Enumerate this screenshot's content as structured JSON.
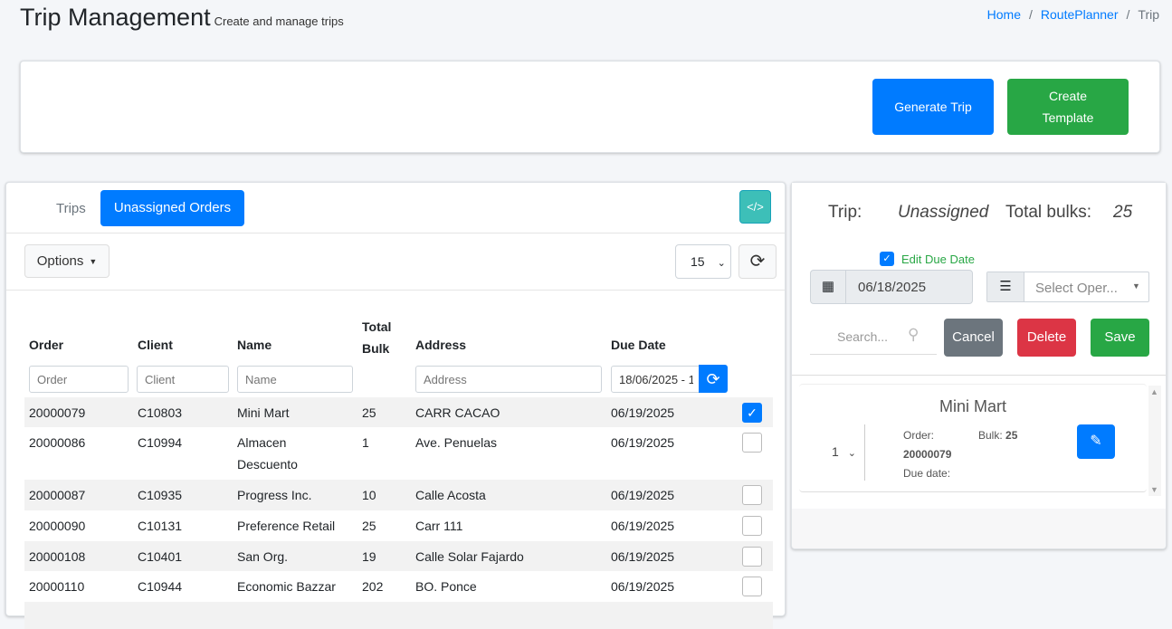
{
  "header": {
    "title": "Trip Management",
    "subtitle": "Create and manage trips",
    "breadcrumb": [
      "Home",
      "RoutePlanner",
      "Trip"
    ]
  },
  "actions": {
    "generate": "Generate Trip",
    "create_template": "Create Template"
  },
  "left": {
    "tabs": [
      {
        "label": "Trips"
      },
      {
        "label": "Unassigned Orders"
      }
    ],
    "code_btn": "</>",
    "options": "Options",
    "page_size": "15",
    "columns": [
      "Order",
      "Client",
      "Name",
      "Total Bulk",
      "Address",
      "Due Date"
    ],
    "filters": {
      "order": "Order",
      "client": "Client",
      "name": "Name",
      "address": "Address",
      "due_date": "18/06/2025 - 1"
    },
    "rows": [
      {
        "order": "20000079",
        "client": "C10803",
        "name": "Mini Mart",
        "bulk": "25",
        "address": "CARR CACAO",
        "due": "06/19/2025",
        "checked": true
      },
      {
        "order": "20000086",
        "client": "C10994",
        "name": "Almacen Descuento",
        "bulk": "1",
        "address": "Ave. Penuelas",
        "due": "06/19/2025",
        "checked": false
      },
      {
        "order": "20000087",
        "client": "C10935",
        "name": "Progress Inc.",
        "bulk": "10",
        "address": "Calle Acosta",
        "due": "06/19/2025",
        "checked": false
      },
      {
        "order": "20000090",
        "client": "C10131",
        "name": "Preference Retail",
        "bulk": "25",
        "address": "Carr 111",
        "due": "06/19/2025",
        "checked": false
      },
      {
        "order": "20000108",
        "client": "C10401",
        "name": "San Org.",
        "bulk": "19",
        "address": "Calle Solar Fajardo",
        "due": "06/19/2025",
        "checked": false
      },
      {
        "order": "20000110",
        "client": "C10944",
        "name": "Economic Bazzar",
        "bulk": "202",
        "address": "BO. Ponce",
        "due": "06/19/2025",
        "checked": false
      }
    ]
  },
  "right": {
    "trip_label": "Trip:",
    "trip_value": "Unassigned",
    "bulks_label": "Total bulks:",
    "bulks_value": "25",
    "edit_due": "Edit Due Date",
    "date": "06/18/2025",
    "operator_placeholder": "Select Oper...",
    "search_placeholder": "Search...",
    "cancel": "Cancel",
    "delete": "Delete",
    "save": "Save",
    "item": {
      "name": "Mini Mart",
      "seq": "1",
      "order_label": "Order:",
      "order": "20000079",
      "bulk_label": "Bulk:",
      "bulk": "25",
      "due_label": "Due date:"
    }
  }
}
